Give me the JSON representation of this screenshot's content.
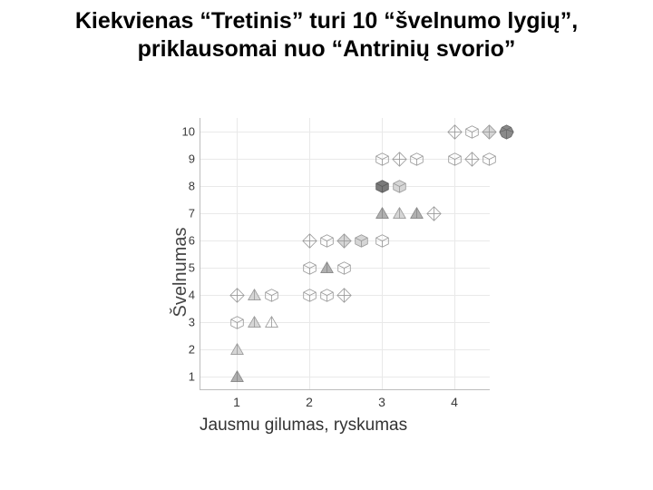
{
  "title": "Kiekvienas “Tretinis” turi 10 “švelnumo lygių”, priklausomai nuo “Antrinių svorio”",
  "title_fontsize": 25,
  "chart": {
    "type": "scatter_shape_grid",
    "ylabel": "Švelnumas",
    "ylabel_fontsize": 20,
    "xlabel": "Jausmu gilumas, ryskumas",
    "xlabel_fontsize": 19,
    "background_color": "#ffffff",
    "grid_color": "#e9e9e9",
    "axis_color": "#bdbdbd",
    "tick_color": "#3a3a3a",
    "ylim": [
      1,
      10
    ],
    "xlim": [
      1,
      4
    ],
    "yticks": [
      1,
      2,
      3,
      4,
      5,
      6,
      7,
      8,
      9,
      10
    ],
    "xticks": [
      1,
      2,
      3,
      4
    ],
    "gridlines_h": [
      1,
      2,
      3,
      4,
      5,
      6,
      7,
      8,
      9,
      10
    ],
    "gridlines_v": [
      1,
      2,
      3,
      4
    ],
    "shape_palette": {
      "octa_outline": {
        "kind": "octa",
        "fill": "none",
        "stroke": "#9a9a9a"
      },
      "octa_light": {
        "kind": "octa",
        "fill": "#d6d6d6",
        "stroke": "#9a9a9a"
      },
      "octa_dark": {
        "kind": "octa",
        "fill": "#8f8f8f",
        "stroke": "#6f6f6f"
      },
      "cube_outline": {
        "kind": "cube",
        "fill": "none",
        "stroke": "#9a9a9a"
      },
      "cube_light": {
        "kind": "cube",
        "fill": "#d6d6d6",
        "stroke": "#9a9a9a"
      },
      "cube_mid": {
        "kind": "cube",
        "fill": "#b8b8b8",
        "stroke": "#8a8a8a"
      },
      "cube_dark": {
        "kind": "cube",
        "fill": "#7a7a7a",
        "stroke": "#5c5c5c"
      },
      "tetra_outline": {
        "kind": "tetra",
        "fill": "none",
        "stroke": "#9a9a9a"
      },
      "tetra_light": {
        "kind": "tetra",
        "fill": "#d6d6d6",
        "stroke": "#9a9a9a"
      },
      "tetra_mid": {
        "kind": "tetra",
        "fill": "#b0b0b0",
        "stroke": "#8a8a8a"
      },
      "tetra_dark": {
        "kind": "tetra",
        "fill": "#7a7a7a",
        "stroke": "#5c5c5c"
      },
      "dodeca_light": {
        "kind": "dodeca",
        "fill": "#cfcfcf",
        "stroke": "#8a8a8a"
      },
      "dodeca_dark": {
        "kind": "dodeca",
        "fill": "#8a8a8a",
        "stroke": "#6a6a6a"
      }
    },
    "shape_size": 17,
    "points": [
      {
        "x": 1,
        "y": 1,
        "shapes": [
          "tetra_mid"
        ]
      },
      {
        "x": 1,
        "y": 2,
        "shapes": [
          "tetra_light"
        ]
      },
      {
        "x": 1,
        "y": 3,
        "shapes": [
          "cube_outline",
          "tetra_light",
          "tetra_outline"
        ]
      },
      {
        "x": 1,
        "y": 4,
        "shapes": [
          "octa_outline",
          "tetra_light",
          "cube_outline"
        ]
      },
      {
        "x": 2,
        "y": 4,
        "shapes": [
          "cube_outline",
          "cube_outline",
          "octa_outline"
        ]
      },
      {
        "x": 2,
        "y": 5,
        "shapes": [
          "cube_outline",
          "tetra_mid",
          "cube_outline"
        ]
      },
      {
        "x": 2,
        "y": 6,
        "shapes": [
          "octa_outline",
          "cube_outline",
          "octa_light",
          "cube_light"
        ]
      },
      {
        "x": 3,
        "y": 6,
        "shapes": [
          "cube_outline"
        ]
      },
      {
        "x": 3,
        "y": 7,
        "shapes": [
          "tetra_mid",
          "tetra_light",
          "tetra_mid",
          "octa_outline"
        ]
      },
      {
        "x": 3,
        "y": 8,
        "shapes": [
          "cube_dark",
          "cube_light"
        ]
      },
      {
        "x": 3,
        "y": 9,
        "shapes": [
          "cube_outline",
          "octa_outline",
          "cube_outline"
        ]
      },
      {
        "x": 4,
        "y": 9,
        "shapes": [
          "cube_outline",
          "octa_outline",
          "cube_outline"
        ]
      },
      {
        "x": 4,
        "y": 10,
        "shapes": [
          "octa_outline",
          "cube_outline",
          "octa_light",
          "dodeca_dark"
        ]
      }
    ]
  }
}
